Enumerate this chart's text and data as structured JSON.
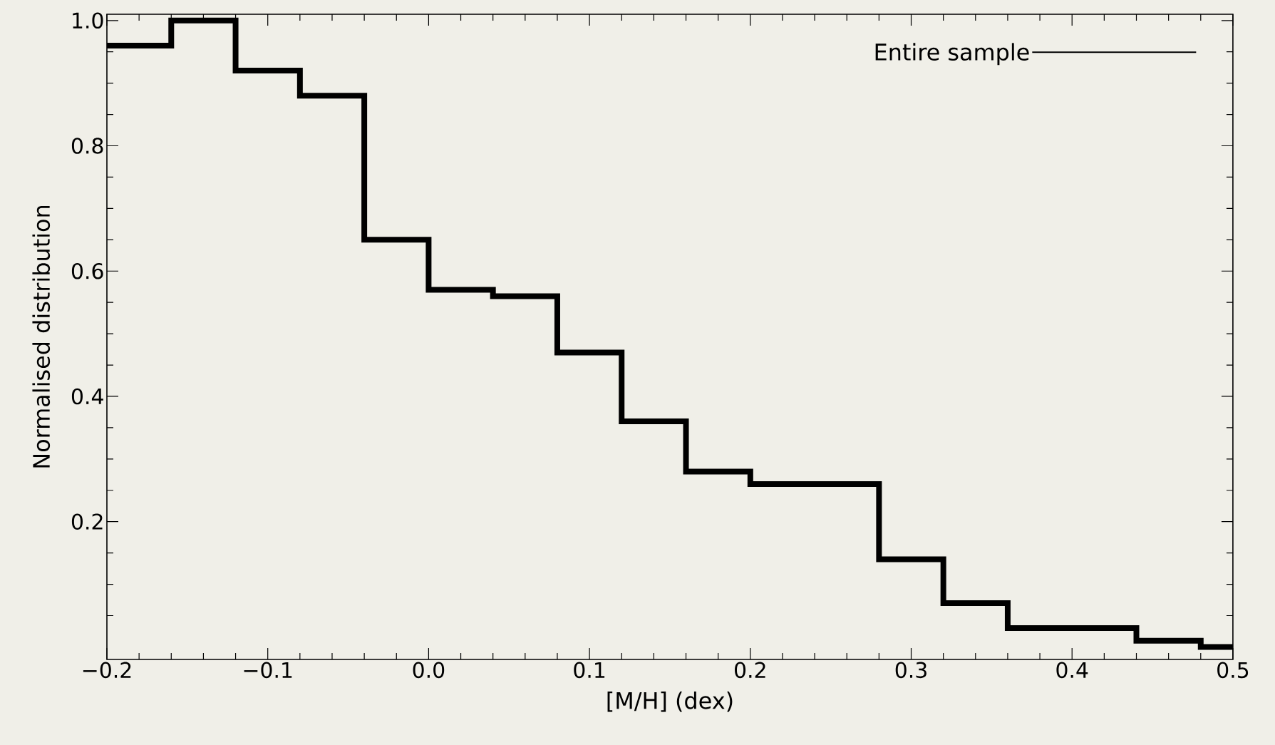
{
  "chart_data": {
    "type": "histogram",
    "xlabel": "[M/H] (dex)",
    "ylabel": "Normalised distribution",
    "bins": [
      -0.2,
      -0.16,
      -0.12,
      -0.08,
      -0.04,
      0.0,
      0.04,
      0.08,
      0.12,
      0.16,
      0.2,
      0.24,
      0.28,
      0.32,
      0.36,
      0.4,
      0.44,
      0.48,
      0.5
    ],
    "series": [
      {
        "name": "Entire sample",
        "color": "#000000",
        "values": [
          0.96,
          1.0,
          0.92,
          0.88,
          0.65,
          0.57,
          0.56,
          0.47,
          0.36,
          0.28,
          0.26,
          0.26,
          0.14,
          0.07,
          0.03,
          0.03,
          0.01,
          0.0
        ]
      }
    ],
    "xlim": [
      -0.2,
      0.5
    ],
    "ylim": [
      -0.02,
      1.01
    ],
    "xticks": [
      {
        "value": -0.2,
        "label": "−0.2"
      },
      {
        "value": -0.18,
        "label": null
      },
      {
        "value": -0.16,
        "label": null
      },
      {
        "value": -0.14,
        "label": null
      },
      {
        "value": -0.12,
        "label": null
      },
      {
        "value": -0.1,
        "label": "−0.1"
      },
      {
        "value": -0.08,
        "label": null
      },
      {
        "value": -0.06,
        "label": null
      },
      {
        "value": -0.04,
        "label": null
      },
      {
        "value": -0.02,
        "label": null
      },
      {
        "value": 0.0,
        "label": "0.0"
      },
      {
        "value": 0.02,
        "label": null
      },
      {
        "value": 0.04,
        "label": null
      },
      {
        "value": 0.06,
        "label": null
      },
      {
        "value": 0.08,
        "label": null
      },
      0.1,
      {
        "value": 0.12,
        "label": null
      },
      {
        "value": 0.14,
        "label": null
      },
      {
        "value": 0.16,
        "label": null
      },
      {
        "value": 0.18,
        "label": null
      },
      0.2,
      {
        "value": 0.22,
        "label": null
      },
      {
        "value": 0.24,
        "label": null
      },
      {
        "value": 0.26,
        "label": null
      },
      {
        "value": 0.28,
        "label": null
      },
      0.3,
      {
        "value": 0.32,
        "label": null
      },
      {
        "value": 0.34,
        "label": null
      },
      {
        "value": 0.36,
        "label": null
      },
      {
        "value": 0.38,
        "label": null
      },
      0.4,
      {
        "value": 0.42,
        "label": null
      },
      {
        "value": 0.44,
        "label": null
      },
      {
        "value": 0.46,
        "label": null
      },
      {
        "value": 0.48,
        "label": null
      },
      0.5
    ],
    "yticks": [
      {
        "value": 0.05,
        "label": null
      },
      {
        "value": 0.1,
        "label": null
      },
      {
        "value": 0.15,
        "label": null
      },
      0.2,
      {
        "value": 0.25,
        "label": null
      },
      {
        "value": 0.3,
        "label": null
      },
      {
        "value": 0.35,
        "label": null
      },
      0.4,
      {
        "value": 0.45,
        "label": null
      },
      {
        "value": 0.5,
        "label": null
      },
      {
        "value": 0.55,
        "label": null
      },
      0.6,
      {
        "value": 0.65,
        "label": null
      },
      {
        "value": 0.7,
        "label": null
      },
      {
        "value": 0.75,
        "label": null
      },
      0.8,
      {
        "value": 0.85,
        "label": null
      },
      {
        "value": 0.9,
        "label": null
      },
      {
        "value": 0.95,
        "label": null
      },
      {
        "value": 1.0,
        "label": "1.0"
      }
    ],
    "legend": "top right"
  }
}
